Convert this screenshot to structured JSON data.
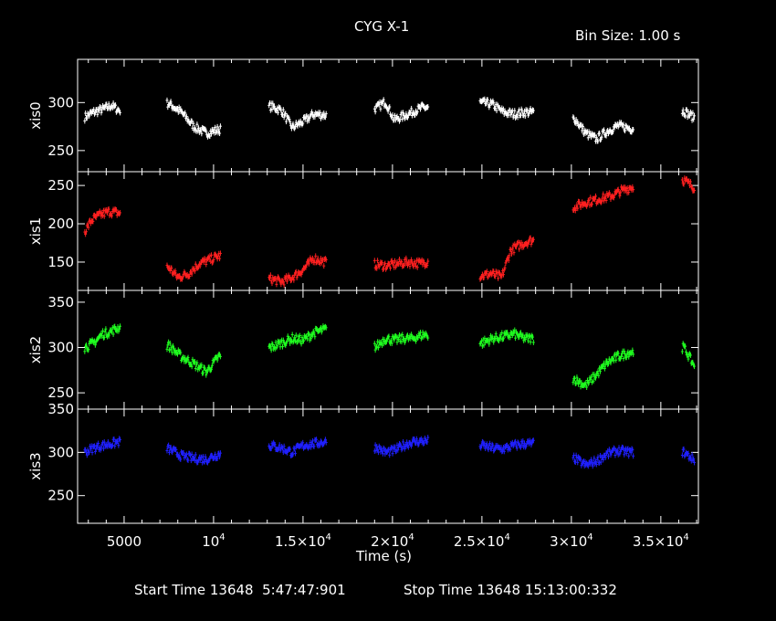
{
  "title": "CYG X-1",
  "bin_size": "Bin Size: 1.00 s",
  "start_label": "Start Time 13648  5:47:47:901",
  "stop_label": "Stop Time 13648 15:13:00:332",
  "xlabel": "Time (s)",
  "x_ticks": [
    {
      "value": 5000,
      "label": "5000"
    },
    {
      "value": 10000,
      "label": "10",
      "sup": "4"
    },
    {
      "value": 15000,
      "label": "1.5×10",
      "sup": "4"
    },
    {
      "value": 20000,
      "label": "2×10",
      "sup": "4"
    },
    {
      "value": 25000,
      "label": "2.5×10",
      "sup": "4"
    },
    {
      "value": 30000,
      "label": "3×10",
      "sup": "4"
    },
    {
      "value": 35000,
      "label": "3.5×10",
      "sup": "4"
    }
  ],
  "chart_data": {
    "type": "scatter",
    "title": "CYG X-1",
    "xlabel": "Time (s)",
    "xlim": [
      2400,
      37100
    ],
    "grid": false,
    "segments": [
      [
        2800,
        4800
      ],
      [
        7400,
        10400
      ],
      [
        13100,
        16300
      ],
      [
        19000,
        22000
      ],
      [
        24900,
        27900
      ],
      [
        30100,
        33500
      ],
      [
        36200,
        36900
      ]
    ],
    "series": [
      {
        "name": "xis0",
        "color": "#ffffff",
        "ylim": [
          228,
          345
        ],
        "yticks": [
          250,
          300
        ],
        "x": [
          2800,
          3300,
          3800,
          4300,
          4700,
          7500,
          8200,
          8900,
          9600,
          10300,
          13200,
          13800,
          14400,
          15000,
          15600,
          16200,
          19100,
          19600,
          20100,
          20600,
          21100,
          21700,
          25000,
          25600,
          26200,
          26800,
          27400,
          30200,
          30800,
          31400,
          32000,
          32600,
          33300,
          36300,
          36800
        ],
        "y": [
          285,
          290,
          293,
          297,
          292,
          299,
          290,
          275,
          268,
          272,
          296,
          292,
          274,
          280,
          288,
          287,
          294,
          301,
          282,
          286,
          290,
          295,
          300,
          298,
          290,
          288,
          290,
          283,
          268,
          262,
          270,
          276,
          273,
          291,
          285
        ]
      },
      {
        "name": "xis1",
        "color": "#ff2020",
        "ylim": [
          113,
          268
        ],
        "yticks": [
          150,
          200,
          250
        ],
        "x": [
          2800,
          3200,
          3700,
          4200,
          4700,
          7500,
          8000,
          8600,
          9200,
          9800,
          10300,
          13200,
          13800,
          14400,
          15000,
          15600,
          16200,
          19100,
          19700,
          20300,
          20900,
          21500,
          22000,
          25000,
          25500,
          26100,
          26600,
          27100,
          27700,
          30200,
          30800,
          31500,
          32200,
          32800,
          33400,
          36300,
          36800
        ],
        "y": [
          190,
          205,
          212,
          216,
          214,
          143,
          130,
          135,
          148,
          153,
          158,
          128,
          124,
          130,
          140,
          155,
          150,
          147,
          145,
          148,
          150,
          148,
          151,
          132,
          135,
          130,
          165,
          172,
          178,
          222,
          228,
          232,
          236,
          243,
          248,
          257,
          248
        ]
      },
      {
        "name": "xis2",
        "color": "#20ff20",
        "ylim": [
          232,
          363
        ],
        "yticks": [
          250,
          300,
          350
        ],
        "x": [
          2800,
          3300,
          3800,
          4300,
          4700,
          7500,
          8200,
          8900,
          9600,
          10300,
          13200,
          13800,
          14400,
          15000,
          15600,
          16200,
          19100,
          19600,
          20100,
          20600,
          21100,
          21700,
          25000,
          25600,
          26200,
          26800,
          27400,
          30200,
          30800,
          31400,
          32000,
          32600,
          33300,
          36300,
          36800
        ],
        "y": [
          300,
          305,
          315,
          318,
          322,
          302,
          290,
          282,
          273,
          290,
          300,
          305,
          310,
          308,
          316,
          320,
          301,
          310,
          308,
          310,
          310,
          314,
          305,
          310,
          312,
          315,
          310,
          265,
          258,
          270,
          283,
          290,
          295,
          300,
          282
        ]
      },
      {
        "name": "xis3",
        "color": "#2020ff",
        "ylim": [
          218,
          350
        ],
        "yticks": [
          250,
          300,
          350
        ],
        "x": [
          2800,
          3300,
          3800,
          4300,
          4700,
          7500,
          8200,
          8900,
          9600,
          10300,
          13200,
          13800,
          14400,
          15000,
          15600,
          16200,
          19100,
          19600,
          20100,
          20600,
          21100,
          21700,
          25000,
          25600,
          26200,
          26800,
          27400,
          30200,
          30800,
          31400,
          32000,
          32600,
          33300,
          36300,
          36800
        ],
        "y": [
          300,
          305,
          308,
          310,
          312,
          304,
          296,
          293,
          292,
          298,
          308,
          305,
          300,
          308,
          310,
          312,
          306,
          300,
          302,
          308,
          312,
          313,
          308,
          305,
          304,
          308,
          310,
          293,
          285,
          290,
          298,
          302,
          300,
          300,
          292
        ]
      }
    ]
  }
}
